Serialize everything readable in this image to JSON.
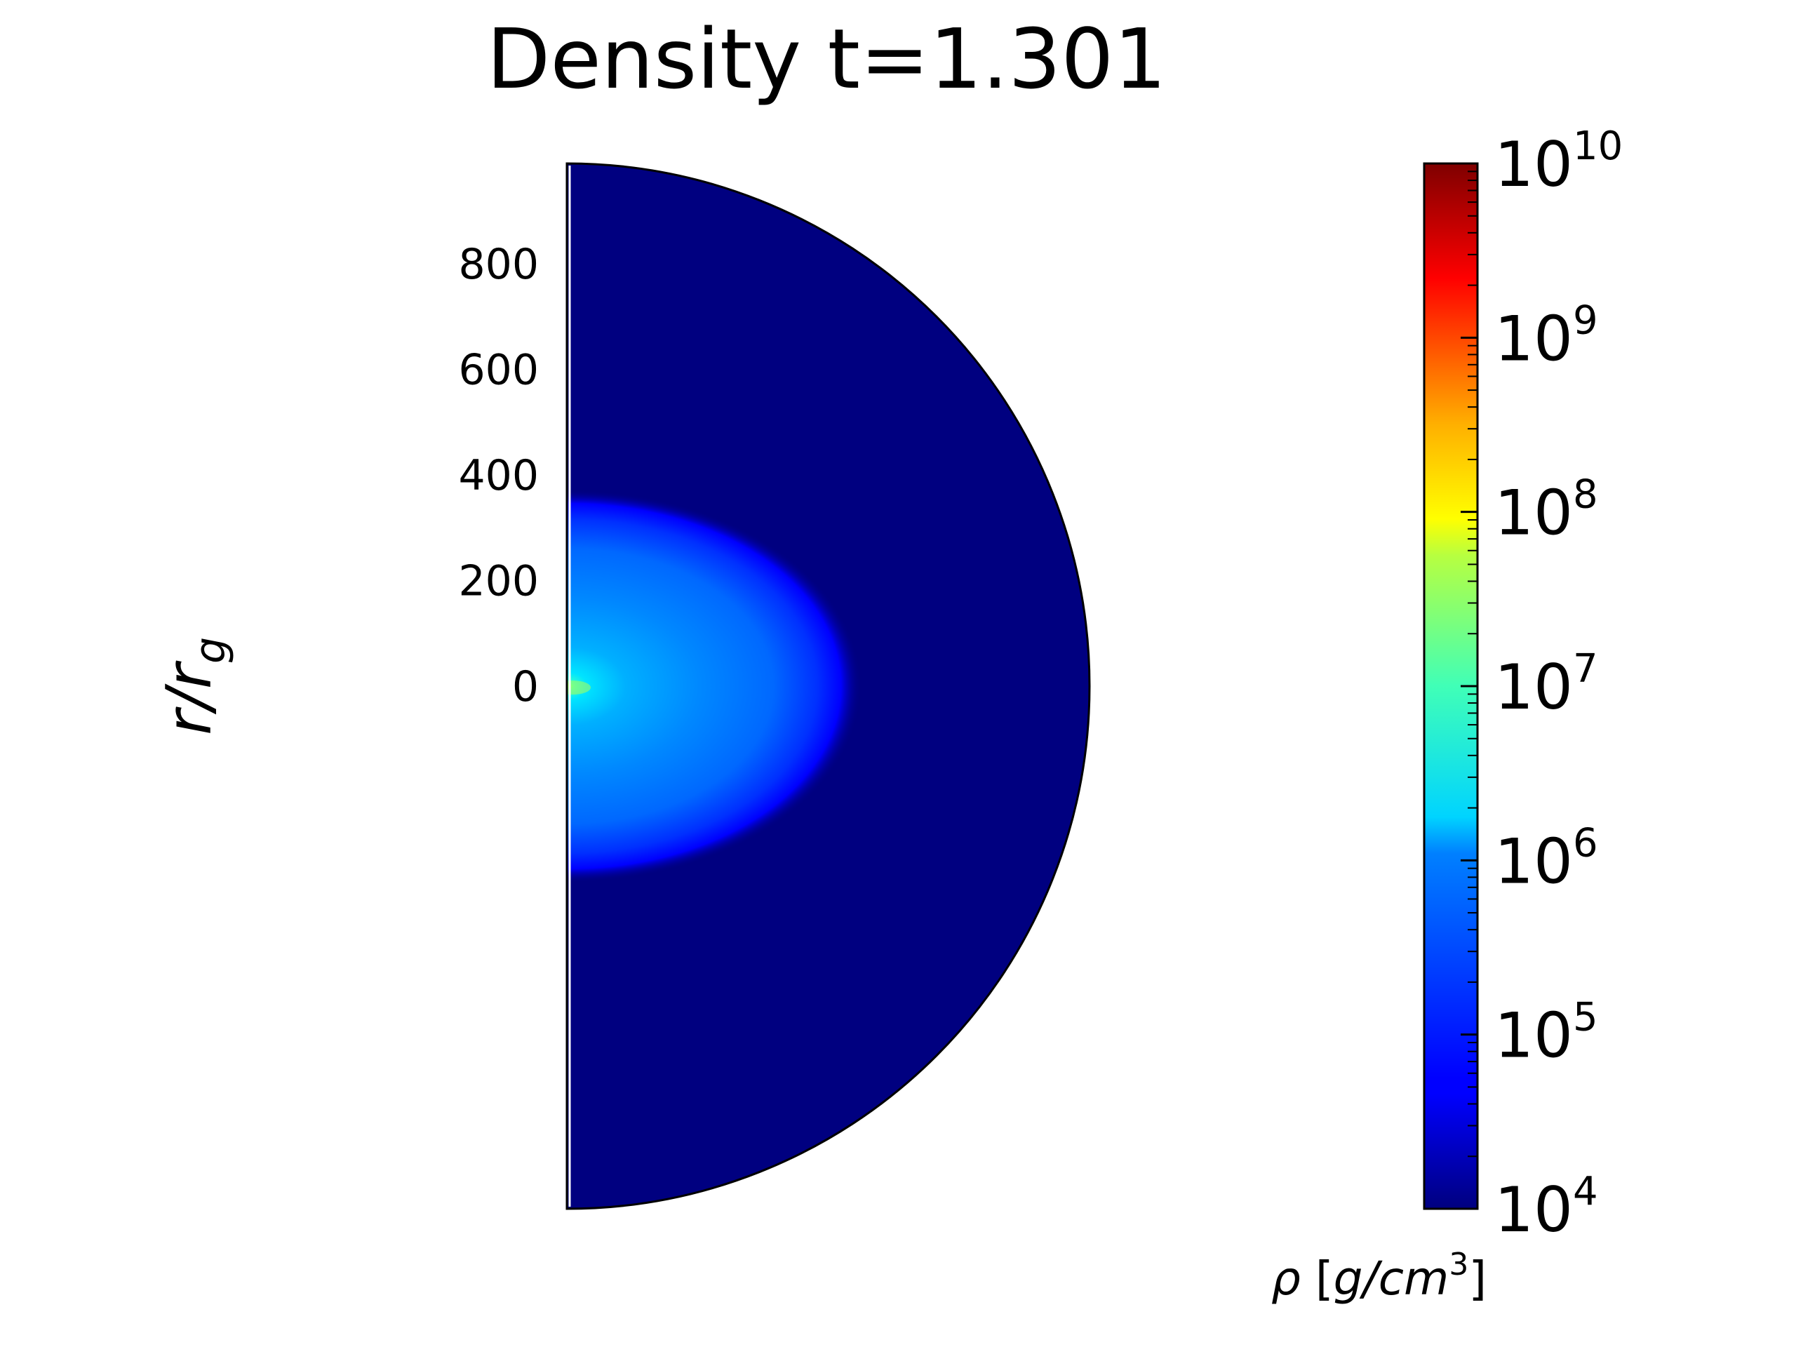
{
  "chart_data": {
    "type": "heatmap",
    "geometry": "meridional half-disk (polar r-theta slice)",
    "title": "Density t=1.301",
    "ylabel": "r/r",
    "ylabel_subscript": "g",
    "y_ticks": [
      0,
      200,
      400,
      600,
      800
    ],
    "y_tick_labels": [
      "0",
      "200",
      "400",
      "600",
      "800"
    ],
    "r_max": 990,
    "color_scale": "log",
    "colormap": "jet",
    "colorbar": {
      "label_symbol": "ρ",
      "label_units": "g/cm",
      "label_units_exponent": "3",
      "vmin": 10000,
      "vmax": 10000000000,
      "ticks": [
        {
          "base": "10",
          "exponent": "4",
          "value": 10000
        },
        {
          "base": "10",
          "exponent": "5",
          "value": 100000
        },
        {
          "base": "10",
          "exponent": "6",
          "value": 1000000
        },
        {
          "base": "10",
          "exponent": "7",
          "value": 10000000
        },
        {
          "base": "10",
          "exponent": "8",
          "value": 100000000
        },
        {
          "base": "10",
          "exponent": "9",
          "value": 1000000000
        },
        {
          "base": "10",
          "exponent": "10",
          "value": 10000000000
        }
      ]
    },
    "field_description": {
      "background_density": 10000,
      "inner_core_peak_density": 10000000,
      "blob_equatorial_extent_r": 500,
      "blob_polar_extent_r": 350,
      "blob_edge_density": 100000
    }
  }
}
